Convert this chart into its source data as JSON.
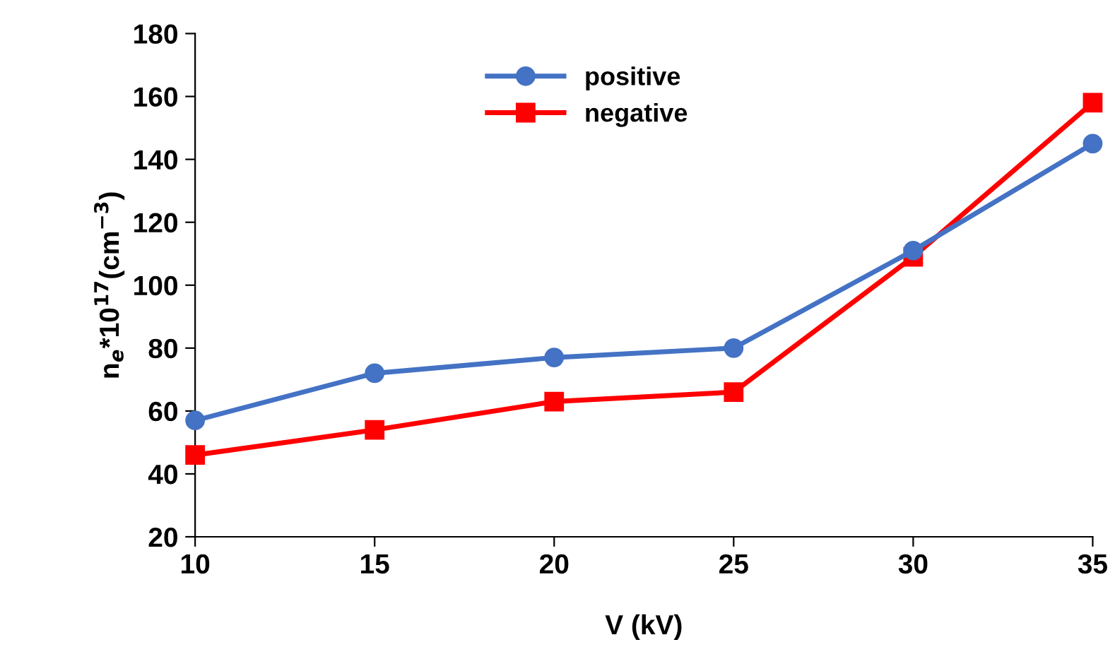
{
  "chart_data": {
    "type": "line",
    "xlabel": "V (kV)",
    "ylabel": "n$_{e}$*10$^{17}$(cm$^{−3}$)",
    "x": [
      10,
      15,
      20,
      25,
      30,
      35
    ],
    "series": [
      {
        "name": "positive",
        "color": "#4472c4",
        "values": [
          57,
          72,
          77,
          80,
          111,
          145
        ],
        "marker": "circle"
      },
      {
        "name": "negative",
        "color": "#ff0000",
        "values": [
          46,
          54,
          63,
          66,
          109,
          158
        ],
        "marker": "square"
      }
    ],
    "xlim": [
      10,
      35
    ],
    "xticks": [
      10,
      15,
      20,
      25,
      30,
      35
    ],
    "ylim": [
      20,
      180
    ],
    "yticks": [
      20,
      40,
      60,
      80,
      100,
      120,
      140,
      160,
      180
    ],
    "grid": false,
    "legend": "top left",
    "line_style": "solid"
  }
}
